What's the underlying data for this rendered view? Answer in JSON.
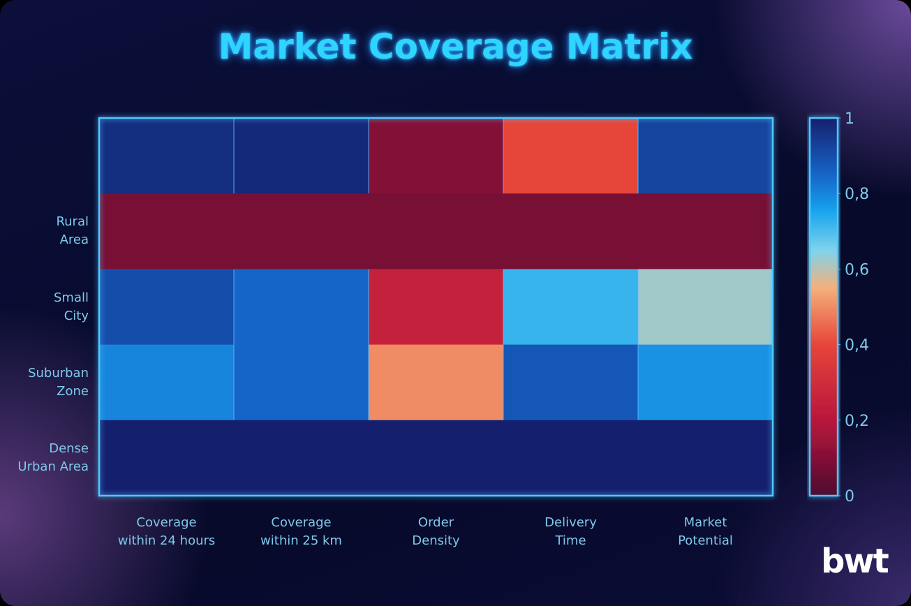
{
  "chart_data": {
    "type": "heatmap",
    "title": "Market Coverage Matrix",
    "x": [
      "Coverage\nwithin 24 hours",
      "Coverage\nwithin 25 km",
      "Order\nDensity",
      "Delivery\nTime",
      "Market\nPotential"
    ],
    "categories": [
      null,
      "Rural\nArea",
      "Small\nCity",
      "Suburban\nZone",
      "Dense\nUrban Area"
    ],
    "values": [
      [
        0.97,
        0.98,
        0.1,
        0.4,
        0.92
      ],
      [
        0.08,
        0.08,
        0.08,
        0.08,
        0.08
      ],
      [
        0.9,
        0.85,
        0.25,
        0.72,
        0.62
      ],
      [
        0.8,
        0.85,
        0.5,
        0.88,
        0.78
      ],
      [
        1,
        1,
        1,
        1,
        1
      ]
    ],
    "colorscale": [
      [
        0,
        "#4e0a30"
      ],
      [
        0.2,
        "#b8163c"
      ],
      [
        0.4,
        "#e6453a"
      ],
      [
        0.55,
        "#f4b07a"
      ],
      [
        0.65,
        "#7fd3ec"
      ],
      [
        0.75,
        "#1aa6ee"
      ],
      [
        0.85,
        "#1565c8"
      ],
      [
        1,
        "#14206e"
      ]
    ],
    "zlim": [
      0,
      1
    ],
    "zticks": [
      0,
      {
        "value": 0.2,
        "label": "0,2"
      },
      {
        "value": 0.4,
        "label": "0,4"
      },
      {
        "value": 0.6,
        "label": "0,6"
      },
      {
        "value": 0.8,
        "label": "0,8"
      },
      1
    ],
    "logo": "bwt"
  }
}
